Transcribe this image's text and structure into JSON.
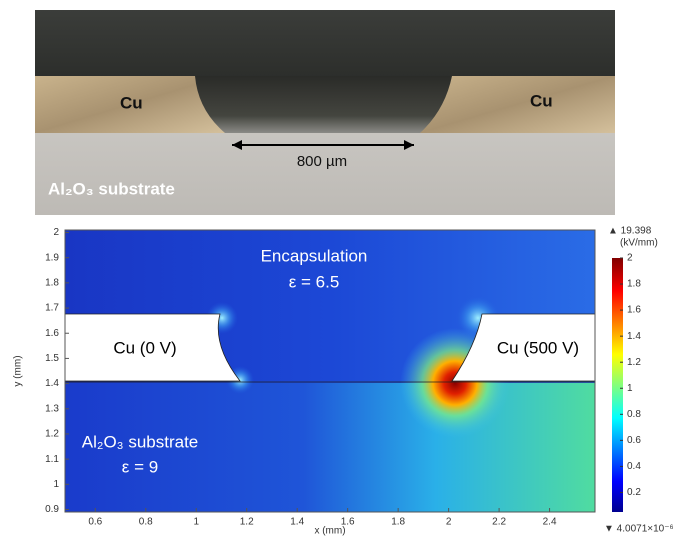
{
  "photo": {
    "cu_left": "Cu",
    "cu_right": "Cu",
    "dimension": "800 µm",
    "substrate": "Al₂O₃ substrate"
  },
  "plot": {
    "type": "field",
    "x_label": "x (mm)",
    "y_label": "y (mm)",
    "xlim": [
      0.48,
      2.58
    ],
    "ylim": [
      0.89,
      2.01
    ],
    "xticks": [
      0.6,
      0.8,
      1,
      1.2,
      1.4,
      1.6,
      1.8,
      2,
      2.2,
      2.4
    ],
    "yticks": [
      0.9,
      1,
      1.1,
      1.2,
      1.3,
      1.4,
      1.5,
      1.6,
      1.7,
      1.8,
      1.9,
      2
    ],
    "encapsulation": "Encapsulation",
    "encapsulation_eps": "ε = 6.5",
    "cu_left": "Cu (0 V)",
    "cu_right": "Cu (500 V)",
    "substrate": "Al₂O₃ substrate",
    "substrate_eps": "ε = 9",
    "colorbar": {
      "max": "▲ 19.398",
      "unit": "(kV/mm)",
      "min": "▼ 4.0071×10⁻⁶",
      "lim": [
        0.05,
        2
      ],
      "ticks": [
        0.2,
        0.4,
        0.6,
        0.8,
        1,
        1.2,
        1.4,
        1.6,
        1.8,
        2
      ]
    }
  }
}
